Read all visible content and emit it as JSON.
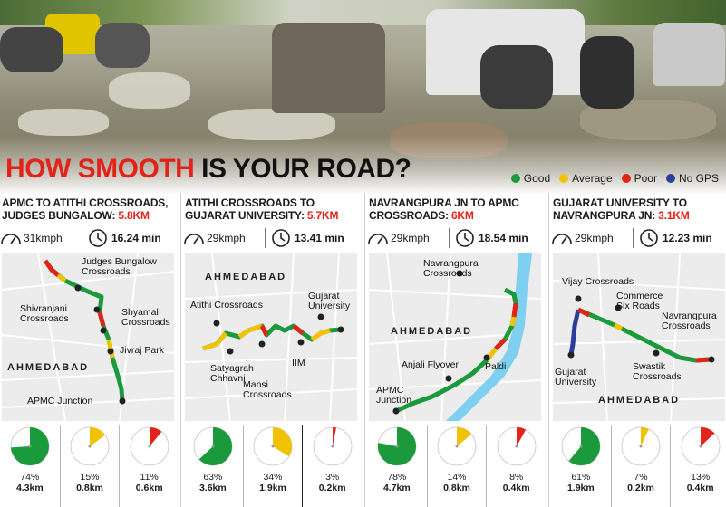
{
  "headline": {
    "part1": "HOW SMOOTH",
    "part2": " IS YOUR ROAD?"
  },
  "colors": {
    "good": "#1a9a3a",
    "average": "#f2c200",
    "poor": "#e2231a",
    "no_gps": "#2b3f9a"
  },
  "legend": [
    {
      "label": "Good",
      "color": "#1a9a3a"
    },
    {
      "label": "Average",
      "color": "#f2c200"
    },
    {
      "label": "Poor",
      "color": "#e2231a"
    },
    {
      "label": "No GPS",
      "color": "#2b3f9a"
    }
  ],
  "panels": [
    {
      "title": "APMC TO ATITHI CROSSROADS, JUDGES BUNGALOW:",
      "distance": "5.8KM",
      "speed": "31kmph",
      "time": "16.24 min",
      "city": "AHMEDABAD",
      "labels": [
        "Judges Bungalow\nCrossroads",
        "Shivranjani\nCrossroads",
        "Shyamal\nCrossroads",
        "Jivraj Park",
        "APMC Junction"
      ],
      "pies": [
        {
          "pct": "74%",
          "km": "4.3km",
          "value": 74,
          "color": "#1a9a3a"
        },
        {
          "pct": "15%",
          "km": "0.8km",
          "value": 15,
          "color": "#f2c200"
        },
        {
          "pct": "11%",
          "km": "0.6km",
          "value": 11,
          "color": "#e2231a"
        }
      ]
    },
    {
      "title": "ATITHI CROSSROADS TO GUJARAT UNIVERSITY:",
      "distance": "5.7KM",
      "speed": "29kmph",
      "time": "13.41 min",
      "city": "AHMEDABAD",
      "labels": [
        "Atithi Crossroads",
        "Gujarat\nUniversity",
        "Satyagrah\nChhavni",
        "IIM",
        "Mansi\nCrossroads"
      ],
      "pies": [
        {
          "pct": "63%",
          "km": "3.6km",
          "value": 63,
          "color": "#1a9a3a"
        },
        {
          "pct": "34%",
          "km": "1.9km",
          "value": 34,
          "color": "#f2c200"
        },
        {
          "pct": "3%",
          "km": "0.2km",
          "value": 3,
          "color": "#e2231a"
        }
      ]
    },
    {
      "title": "NAVRANGPURA JN TO APMC CROSSROADS:",
      "distance": "6KM",
      "speed": "29kmph",
      "time": "18.54 min",
      "city": "AHMEDABAD",
      "labels": [
        "Navrangpura\nCrossroads",
        "Anjali Flyover",
        "Paldi",
        "APMC\nJunction"
      ],
      "pies": [
        {
          "pct": "78%",
          "km": "4.7km",
          "value": 78,
          "color": "#1a9a3a"
        },
        {
          "pct": "14%",
          "km": "0.8km",
          "value": 14,
          "color": "#f2c200"
        },
        {
          "pct": "8%",
          "km": "0.4km",
          "value": 8,
          "color": "#e2231a"
        }
      ]
    },
    {
      "title": "GUJARAT UNIVERSITY TO NAVRANGPURA JN:",
      "distance": "3.1KM",
      "speed": "29kmph",
      "time": "12.23 min",
      "city": "AHMEDABAD",
      "labels": [
        "Vijay Crossroads",
        "Commerce\nSix Roads",
        "Navrangpura\nCrossroads",
        "Gujarat\nUniversity",
        "Swastik\nCrossroads"
      ],
      "pies": [
        {
          "pct": "61%",
          "km": "1.9km",
          "value": 61,
          "color": "#1a9a3a"
        },
        {
          "pct": "7%",
          "km": "0.2km",
          "value": 7,
          "color": "#f2c200"
        },
        {
          "pct": "13%",
          "km": "0.4km",
          "value": 13,
          "color": "#e2231a"
        }
      ]
    }
  ]
}
